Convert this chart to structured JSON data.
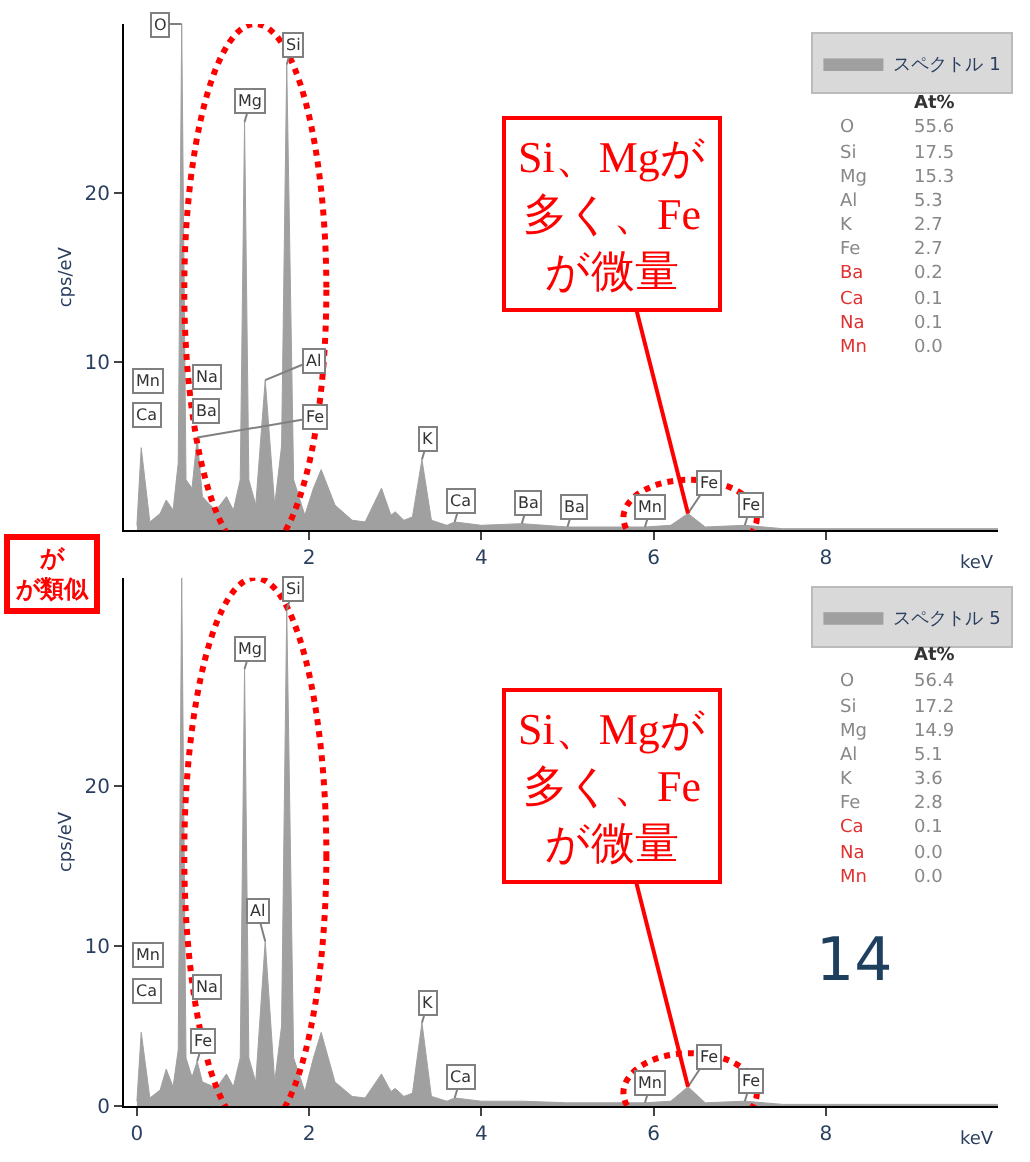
{
  "chart_data": [
    {
      "type": "area",
      "xlabel": "keV",
      "ylabel": "cps/eV",
      "legend": "top right",
      "xlim": [
        -0.15,
        10
      ],
      "ylim": [
        0,
        30
      ],
      "xticks": [
        2,
        4,
        6,
        8
      ],
      "yticks": [
        10,
        20
      ],
      "series": [
        {
          "name": "スペクトル 1",
          "color": "#a0a0a0",
          "x": [
            0,
            0.05,
            0.15,
            0.27,
            0.34,
            0.42,
            0.48,
            0.52,
            0.57,
            0.64,
            0.7,
            0.76,
            0.85,
            0.92,
            1.04,
            1.12,
            1.2,
            1.25,
            1.3,
            1.38,
            1.49,
            1.6,
            1.68,
            1.74,
            1.82,
            1.95,
            2.05,
            2.14,
            2.3,
            2.5,
            2.65,
            2.84,
            2.95,
            3.0,
            3.1,
            3.2,
            3.31,
            3.42,
            3.6,
            3.69,
            4.0,
            4.47,
            5.0,
            5.5,
            5.9,
            6.2,
            6.4,
            6.6,
            7.06,
            7.5,
            8.5,
            9.5,
            10
          ],
          "values": [
            0.3,
            4.9,
            0.5,
            1.0,
            1.8,
            1.2,
            4,
            30,
            3,
            2.5,
            5.5,
            2,
            1.5,
            1.2,
            2.0,
            1.2,
            3,
            24.2,
            3,
            1.5,
            8.9,
            1.5,
            5,
            27.6,
            3,
            0.9,
            2.5,
            3.6,
            1.5,
            0.6,
            0.5,
            2.5,
            0.9,
            1.1,
            0.6,
            0.8,
            4.2,
            0.6,
            0.3,
            0.5,
            0.3,
            0.4,
            0.2,
            0.2,
            0.2,
            0.3,
            1.0,
            0.2,
            0.3,
            0.1,
            0.1,
            0.1,
            0.1
          ]
        }
      ],
      "annotations": [
        {
          "text": "Si、Mgが多く、Feが微量",
          "x": 6.4,
          "y": 1.0
        },
        {
          "text": "O",
          "x": 0.52,
          "y": 30
        },
        {
          "text": "Mg",
          "x": 1.25,
          "y": 24.2
        },
        {
          "text": "Si",
          "x": 1.74,
          "y": 27.6
        },
        {
          "text": "Al",
          "x": 1.49,
          "y": 8.9
        },
        {
          "text": "Fe",
          "x": 0.7,
          "y": 5.5
        },
        {
          "text": "K",
          "x": 3.31,
          "y": 4.2
        },
        {
          "text": "Ca",
          "x": 3.69,
          "y": 0.5
        },
        {
          "text": "Ba",
          "x": 4.47,
          "y": 0.4
        },
        {
          "text": "Ba",
          "x": 5.0,
          "y": 0.2
        },
        {
          "text": "Mn",
          "x": 5.9,
          "y": 0.2
        },
        {
          "text": "Fe",
          "x": 6.4,
          "y": 1.0
        },
        {
          "text": "Fe",
          "x": 7.06,
          "y": 0.3
        },
        "Ca",
        "Mn",
        "Ba",
        "Na",
        "At%",
        "O 55.6",
        "Si 17.5",
        "Mg 15.3",
        "Al 5.3",
        "K 2.7",
        "Fe 2.7",
        "Ba 0.2",
        "Ca 0.1",
        "Na 0.1",
        "Mn 0.0",
        "が",
        "が類似"
      ]
    },
    {
      "type": "area",
      "xlabel": "keV",
      "ylabel": "cps/eV",
      "legend": "top right",
      "xlim": [
        -0.15,
        10
      ],
      "ylim": [
        0,
        33
      ],
      "xticks": [
        0,
        2,
        4,
        6,
        8
      ],
      "yticks": [
        0,
        10,
        20
      ],
      "series": [
        {
          "name": "スペクトル 5",
          "color": "#a0a0a0",
          "x": [
            0,
            0.05,
            0.15,
            0.27,
            0.34,
            0.42,
            0.48,
            0.52,
            0.57,
            0.64,
            0.7,
            0.76,
            0.85,
            0.92,
            1.04,
            1.12,
            1.2,
            1.25,
            1.3,
            1.38,
            1.49,
            1.6,
            1.68,
            1.74,
            1.82,
            1.95,
            2.05,
            2.14,
            2.3,
            2.5,
            2.65,
            2.84,
            2.95,
            3.0,
            3.1,
            3.2,
            3.31,
            3.42,
            3.6,
            3.69,
            4.0,
            4.47,
            5.0,
            5.5,
            5.9,
            6.2,
            6.4,
            6.6,
            7.06,
            7.5,
            8.5,
            9.5,
            10
          ],
          "values": [
            0.3,
            4.6,
            0.5,
            1.0,
            2.3,
            1.2,
            3.5,
            33,
            3,
            1.8,
            2.8,
            1.5,
            1.3,
            1.1,
            2.0,
            1.2,
            3,
            27.3,
            3,
            1.5,
            10.3,
            1.5,
            5,
            31,
            3,
            0.9,
            3,
            4.6,
            1.5,
            0.6,
            0.5,
            2.0,
            0.9,
            1.1,
            0.6,
            0.8,
            5.2,
            0.6,
            0.3,
            0.5,
            0.3,
            0.3,
            0.2,
            0.2,
            0.2,
            0.3,
            1.2,
            0.2,
            0.3,
            0.1,
            0.1,
            0.1,
            0.1
          ]
        }
      ],
      "annotations": [
        {
          "text": "Si、Mgが多く、Feが微量",
          "x": 6.4,
          "y": 1.2
        },
        {
          "text": "Mg",
          "x": 1.25,
          "y": 27.3
        },
        {
          "text": "Si",
          "x": 1.74,
          "y": 31
        },
        {
          "text": "Al",
          "x": 1.49,
          "y": 10.3
        },
        {
          "text": "Fe",
          "x": 0.7,
          "y": 2.8
        },
        {
          "text": "K",
          "x": 3.31,
          "y": 5.2
        },
        {
          "text": "Ca",
          "x": 3.69,
          "y": 0.5
        },
        {
          "text": "Mn",
          "x": 5.9,
          "y": 0.2
        },
        {
          "text": "Fe",
          "x": 6.4,
          "y": 1.2
        },
        {
          "text": "Fe",
          "x": 7.06,
          "y": 0.3
        },
        "Ca",
        "Mn",
        "Na",
        "At%",
        "O 56.4",
        "Si 17.2",
        "Mg 14.9",
        "Al 5.1",
        "K 3.6",
        "Fe 2.8",
        "Ca 0.1",
        "Na 0.0",
        "Mn 0.0",
        "14"
      ]
    }
  ]
}
